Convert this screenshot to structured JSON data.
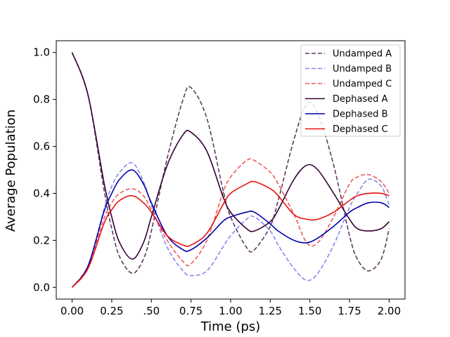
{
  "chart_data": {
    "type": "line",
    "xlabel": "Time (ps)",
    "ylabel": "Average Population",
    "xlim": [
      -0.1,
      2.1
    ],
    "ylim": [
      -0.05,
      1.05
    ],
    "x_ticks": [
      0.0,
      0.25,
      0.5,
      0.75,
      1.0,
      1.25,
      1.5,
      1.75,
      2.0
    ],
    "x_tick_labels": [
      "0.00",
      "0.25",
      ".50",
      "0.75",
      "1.00",
      "1.25",
      "1.50",
      "1.75",
      "2.00"
    ],
    "y_ticks": [
      0.0,
      0.2,
      0.4,
      0.6,
      0.8,
      1.0
    ],
    "y_tick_labels": [
      "0.0",
      "0.2",
      "0.4",
      "0.6",
      "0.8",
      "1.0"
    ],
    "grid": false,
    "legend_position": "top-right",
    "x": [
      0.0,
      0.1,
      0.2,
      0.25,
      0.3,
      0.38,
      0.45,
      0.5,
      0.6,
      0.7,
      0.75,
      0.85,
      0.95,
      1.0,
      1.1,
      1.15,
      1.25,
      1.3,
      1.4,
      1.48,
      1.55,
      1.65,
      1.75,
      1.8,
      1.87,
      1.95,
      2.0
    ],
    "series": [
      {
        "name": "Undamped A",
        "style": "dashed",
        "color": "#5e3a5e",
        "values": [
          1.0,
          0.82,
          0.42,
          0.25,
          0.13,
          0.06,
          0.12,
          0.24,
          0.55,
          0.8,
          0.85,
          0.72,
          0.42,
          0.3,
          0.17,
          0.16,
          0.26,
          0.37,
          0.63,
          0.78,
          0.74,
          0.52,
          0.22,
          0.12,
          0.07,
          0.12,
          0.25
        ]
      },
      {
        "name": "Undamped B",
        "style": "dashed",
        "color": "#8787f0",
        "values": [
          0.0,
          0.09,
          0.33,
          0.43,
          0.49,
          0.53,
          0.45,
          0.35,
          0.17,
          0.07,
          0.05,
          0.07,
          0.17,
          0.22,
          0.29,
          0.3,
          0.24,
          0.18,
          0.08,
          0.03,
          0.06,
          0.18,
          0.34,
          0.4,
          0.46,
          0.43,
          0.35
        ]
      },
      {
        "name": "Undamped C",
        "style": "dashed",
        "color": "#ec5c5c",
        "values": [
          0.0,
          0.09,
          0.29,
          0.36,
          0.4,
          0.42,
          0.39,
          0.33,
          0.2,
          0.11,
          0.1,
          0.2,
          0.4,
          0.47,
          0.54,
          0.54,
          0.49,
          0.44,
          0.31,
          0.19,
          0.19,
          0.3,
          0.44,
          0.47,
          0.48,
          0.45,
          0.4
        ]
      },
      {
        "name": "Dephased A",
        "style": "solid",
        "color": "#330033",
        "values": [
          1.0,
          0.82,
          0.45,
          0.3,
          0.19,
          0.12,
          0.19,
          0.3,
          0.52,
          0.65,
          0.66,
          0.58,
          0.39,
          0.32,
          0.25,
          0.24,
          0.28,
          0.33,
          0.46,
          0.52,
          0.5,
          0.4,
          0.29,
          0.25,
          0.24,
          0.25,
          0.28
        ]
      },
      {
        "name": "Dephased B",
        "style": "solid",
        "color": "#0000aa",
        "values": [
          0.0,
          0.09,
          0.32,
          0.4,
          0.46,
          0.5,
          0.44,
          0.36,
          0.22,
          0.16,
          0.16,
          0.21,
          0.28,
          0.3,
          0.32,
          0.32,
          0.27,
          0.24,
          0.2,
          0.19,
          0.21,
          0.26,
          0.32,
          0.34,
          0.36,
          0.36,
          0.34
        ]
      },
      {
        "name": "Dephased C",
        "style": "solid",
        "color": "#e81010",
        "values": [
          0.0,
          0.08,
          0.27,
          0.33,
          0.37,
          0.39,
          0.36,
          0.32,
          0.22,
          0.18,
          0.18,
          0.23,
          0.35,
          0.4,
          0.44,
          0.45,
          0.42,
          0.39,
          0.31,
          0.29,
          0.29,
          0.32,
          0.37,
          0.39,
          0.4,
          0.4,
          0.39
        ]
      }
    ]
  }
}
